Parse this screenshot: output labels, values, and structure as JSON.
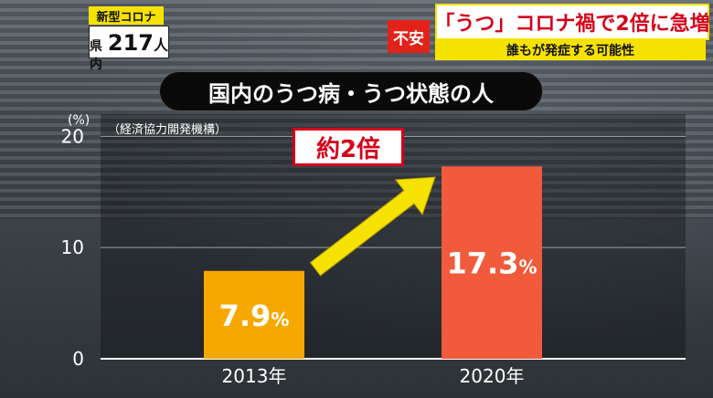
{
  "badge": {
    "label": "新型コロナ",
    "prefix": "県内",
    "count": "217",
    "suffix": "人"
  },
  "headline": {
    "tag": "不安",
    "title": "「うつ」コロナ禍で2倍に急増",
    "subtitle": "誰もが発症する可能性"
  },
  "callout": "約2倍",
  "colors": {
    "bar_2013": "#f7a800",
    "bar_2020": "#f15a3a",
    "arrow": "#f6e200",
    "headline_red": "#d4001a",
    "tag_red": "#e2231a"
  },
  "chart_data": {
    "type": "bar",
    "title": "国内のうつ病・うつ状態の人",
    "source": "（経済協力開発機構）",
    "ylabel": "(%)",
    "categories": [
      "2013年",
      "2020年"
    ],
    "values": [
      7.9,
      17.3
    ],
    "value_labels": [
      "7.9",
      "17.3"
    ],
    "value_unit": "%",
    "yticks": [
      0,
      10,
      20
    ],
    "ylim": [
      0,
      22
    ],
    "grid": true
  }
}
